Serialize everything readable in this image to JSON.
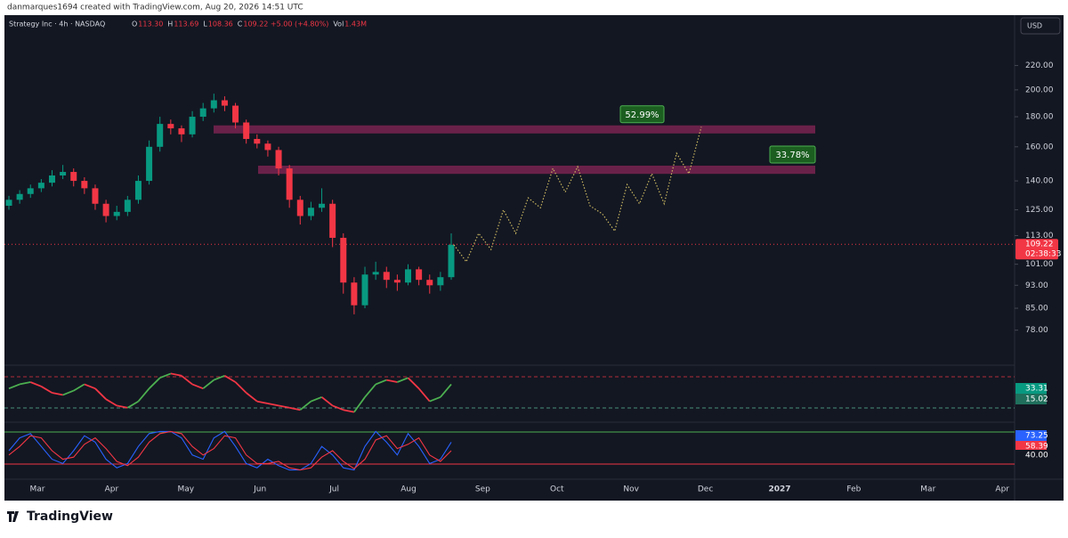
{
  "header": {
    "attribution": "danmarques1694 created with TradingView.com, Aug 20, 2026 14:51 UTC",
    "symbol": "Strategy Inc · 4h · NASDAQ",
    "ohlc": [
      [
        "O",
        "113.30"
      ],
      [
        "H",
        "113.69"
      ],
      [
        "L",
        "108.36"
      ],
      [
        "C",
        "109.22 +5.00 (+4.80%)"
      ],
      [
        "Vol",
        "1.43M"
      ]
    ]
  },
  "currency": "USD",
  "price_axis": {
    "log": true,
    "ylim": [
      68,
      268
    ],
    "ticks": [
      {
        "value": 220,
        "label": "220.00"
      },
      {
        "value": 200,
        "label": "200.00"
      },
      {
        "value": 180,
        "label": "180.00"
      },
      {
        "value": 160,
        "label": "160.00"
      },
      {
        "value": 140,
        "label": "140.00"
      },
      {
        "value": 125,
        "label": "125.00"
      },
      {
        "value": 113,
        "label": "113.00"
      },
      {
        "value": 101,
        "label": "101.00"
      },
      {
        "value": 93,
        "label": "93.00"
      },
      {
        "value": 85,
        "label": "85.00"
      },
      {
        "value": 78,
        "label": "78.00"
      }
    ]
  },
  "time_axis": [
    "Mar",
    "Apr",
    "May",
    "Jun",
    "Jul",
    "Aug",
    "Sep",
    "Oct",
    "Nov",
    "Dec",
    "2027",
    "Feb",
    "Mar",
    "Apr"
  ],
  "candles": {
    "up_color": "#089981",
    "down_color": "#f23645",
    "ohlc": [
      [
        127,
        132,
        125,
        130
      ],
      [
        130,
        135,
        128,
        133
      ],
      [
        133,
        138,
        131,
        136
      ],
      [
        136,
        141,
        134,
        139
      ],
      [
        139,
        146,
        137,
        143
      ],
      [
        143,
        149,
        141,
        145
      ],
      [
        145,
        147,
        137,
        140
      ],
      [
        140,
        142,
        133,
        136
      ],
      [
        136,
        138,
        125,
        128
      ],
      [
        128,
        130,
        119,
        122
      ],
      [
        122,
        127,
        120,
        124
      ],
      [
        124,
        132,
        122,
        130
      ],
      [
        130,
        143,
        128,
        140
      ],
      [
        140,
        164,
        138,
        160
      ],
      [
        160,
        180,
        157,
        175
      ],
      [
        175,
        178,
        168,
        172
      ],
      [
        172,
        174,
        163,
        168
      ],
      [
        168,
        184,
        166,
        180
      ],
      [
        180,
        190,
        177,
        186
      ],
      [
        186,
        197,
        183,
        192
      ],
      [
        192,
        195,
        184,
        188
      ],
      [
        188,
        190,
        172,
        176
      ],
      [
        176,
        178,
        162,
        165
      ],
      [
        165,
        168,
        159,
        162
      ],
      [
        162,
        164,
        154,
        158
      ],
      [
        158,
        160,
        143,
        147
      ],
      [
        147,
        149,
        126,
        130
      ],
      [
        130,
        132,
        118,
        122
      ],
      [
        122,
        129,
        120,
        126
      ],
      [
        126,
        136,
        124,
        128
      ],
      [
        128,
        130,
        108,
        112
      ],
      [
        112,
        114,
        90,
        94
      ],
      [
        94,
        96,
        83,
        86
      ],
      [
        86,
        100,
        85,
        97
      ],
      [
        97,
        102,
        95,
        98
      ],
      [
        98,
        100,
        92,
        95
      ],
      [
        95,
        97,
        91,
        94
      ],
      [
        94,
        101,
        93,
        99
      ],
      [
        99,
        100,
        93,
        95
      ],
      [
        95,
        97,
        90,
        93
      ],
      [
        93,
        98,
        91,
        96
      ],
      [
        96,
        114,
        95,
        109
      ]
    ]
  },
  "last_price": {
    "value": 109.22,
    "label": "109.22",
    "countdown": "02:38:33"
  },
  "projection": {
    "color": "#c8b560",
    "values": [
      109,
      102,
      114,
      107,
      125,
      114,
      131,
      126,
      147,
      134,
      148,
      127,
      123,
      115,
      138,
      128,
      144,
      128,
      156,
      144,
      173
    ]
  },
  "targets": [
    {
      "low": 168.6,
      "high": 174,
      "label": "52.99%"
    },
    {
      "low": 143.9,
      "high": 148.6,
      "label": "33.78%"
    }
  ],
  "oscillator1": {
    "up_color": "#4caf50",
    "down_color": "#f23645",
    "values": [
      60,
      70,
      75,
      65,
      50,
      45,
      55,
      70,
      60,
      35,
      20,
      15,
      30,
      60,
      85,
      95,
      90,
      70,
      60,
      80,
      90,
      75,
      50,
      30,
      25,
      20,
      15,
      10,
      30,
      40,
      20,
      10,
      5,
      40,
      70,
      80,
      75,
      85,
      60,
      30,
      40,
      70
    ],
    "labels": [
      "33.31",
      "15.02"
    ]
  },
  "oscillator2": {
    "series": [
      {
        "color": "#2962ff",
        "values": [
          50,
          80,
          90,
          60,
          30,
          20,
          50,
          85,
          70,
          30,
          10,
          20,
          60,
          90,
          95,
          95,
          80,
          40,
          30,
          80,
          95,
          60,
          20,
          10,
          30,
          15,
          5,
          5,
          20,
          60,
          40,
          10,
          5,
          60,
          95,
          70,
          40,
          90,
          60,
          20,
          30,
          70
        ]
      },
      {
        "color": "#f23645",
        "values": [
          40,
          60,
          85,
          80,
          50,
          30,
          35,
          65,
          80,
          55,
          25,
          15,
          35,
          70,
          90,
          95,
          90,
          60,
          40,
          55,
          85,
          80,
          40,
          20,
          20,
          25,
          10,
          5,
          10,
          35,
          50,
          25,
          8,
          30,
          75,
          85,
          55,
          65,
          80,
          40,
          25,
          50
        ]
      }
    ],
    "labels": [
      "73.25",
      "58.39",
      "40.00"
    ]
  },
  "footer": {
    "brand": "TradingView"
  }
}
